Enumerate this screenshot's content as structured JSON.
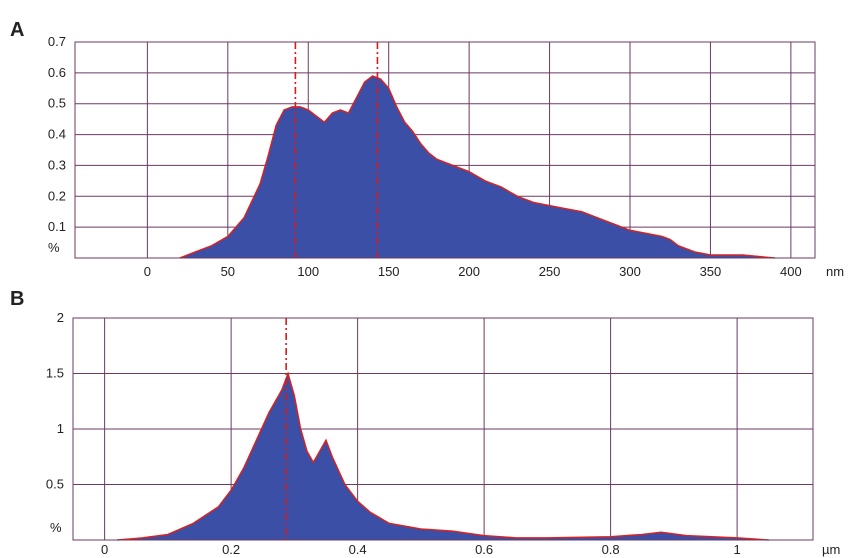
{
  "colors": {
    "fill": "#3b4fa6",
    "edge": "#e0201c",
    "grid": "#6d3a62",
    "marker": "#d9191c",
    "text": "#222222"
  },
  "chart_data": [
    {
      "panel_label": "A",
      "type": "area",
      "xunit": "nm",
      "yunit": "%",
      "xlim": [
        -45,
        415
      ],
      "ylim": [
        0,
        0.7
      ],
      "xticks": [
        0,
        50,
        100,
        150,
        200,
        250,
        300,
        350,
        400
      ],
      "xtick_labels": [
        "0",
        "50",
        "100",
        "150",
        "200",
        "250",
        "300",
        "350",
        "400"
      ],
      "yticks": [
        0.1,
        0.2,
        0.3,
        0.4,
        0.5,
        0.6,
        0.7
      ],
      "ytick_labels": [
        "0.1",
        "0.2",
        "0.3",
        "0.4",
        "0.5",
        "0.6",
        "0.7"
      ],
      "grid": true,
      "markers": [
        92,
        143
      ],
      "x": [
        20,
        30,
        40,
        50,
        60,
        70,
        75,
        80,
        85,
        90,
        95,
        100,
        105,
        110,
        115,
        120,
        125,
        130,
        135,
        140,
        145,
        150,
        155,
        160,
        165,
        170,
        175,
        180,
        190,
        200,
        210,
        220,
        230,
        240,
        250,
        260,
        270,
        280,
        290,
        300,
        310,
        320,
        325,
        330,
        340,
        350,
        360,
        370,
        380,
        390
      ],
      "y": [
        0.0,
        0.02,
        0.04,
        0.07,
        0.13,
        0.24,
        0.33,
        0.43,
        0.48,
        0.49,
        0.49,
        0.48,
        0.46,
        0.44,
        0.47,
        0.48,
        0.47,
        0.52,
        0.57,
        0.59,
        0.58,
        0.55,
        0.49,
        0.44,
        0.41,
        0.37,
        0.34,
        0.32,
        0.3,
        0.28,
        0.25,
        0.23,
        0.2,
        0.18,
        0.17,
        0.16,
        0.15,
        0.13,
        0.11,
        0.09,
        0.08,
        0.07,
        0.06,
        0.04,
        0.02,
        0.01,
        0.01,
        0.01,
        0.005,
        0.0
      ]
    },
    {
      "panel_label": "B",
      "type": "area",
      "xunit": "µm",
      "yunit": "%",
      "xlim": [
        -0.05,
        1.12
      ],
      "ylim": [
        0,
        2
      ],
      "xticks": [
        0,
        0.2,
        0.4,
        0.6,
        0.8,
        1
      ],
      "xtick_labels": [
        "0",
        "0.2",
        "0.4",
        "0.6",
        "0.8",
        "1"
      ],
      "yticks": [
        0.5,
        1,
        1.5,
        2
      ],
      "ytick_labels": [
        "0.5",
        "1",
        "1.5",
        "2"
      ],
      "grid": true,
      "markers": [
        0.287
      ],
      "x": [
        0.02,
        0.06,
        0.1,
        0.14,
        0.18,
        0.2,
        0.22,
        0.24,
        0.26,
        0.27,
        0.28,
        0.29,
        0.3,
        0.31,
        0.32,
        0.33,
        0.34,
        0.35,
        0.36,
        0.38,
        0.4,
        0.42,
        0.45,
        0.5,
        0.55,
        0.6,
        0.65,
        0.7,
        0.8,
        0.85,
        0.88,
        0.92,
        1.0,
        1.05
      ],
      "y": [
        0.0,
        0.02,
        0.05,
        0.15,
        0.3,
        0.45,
        0.65,
        0.9,
        1.15,
        1.25,
        1.35,
        1.5,
        1.3,
        1.0,
        0.8,
        0.7,
        0.8,
        0.9,
        0.75,
        0.5,
        0.35,
        0.25,
        0.15,
        0.1,
        0.08,
        0.04,
        0.02,
        0.02,
        0.03,
        0.05,
        0.07,
        0.04,
        0.02,
        0.0
      ]
    }
  ]
}
